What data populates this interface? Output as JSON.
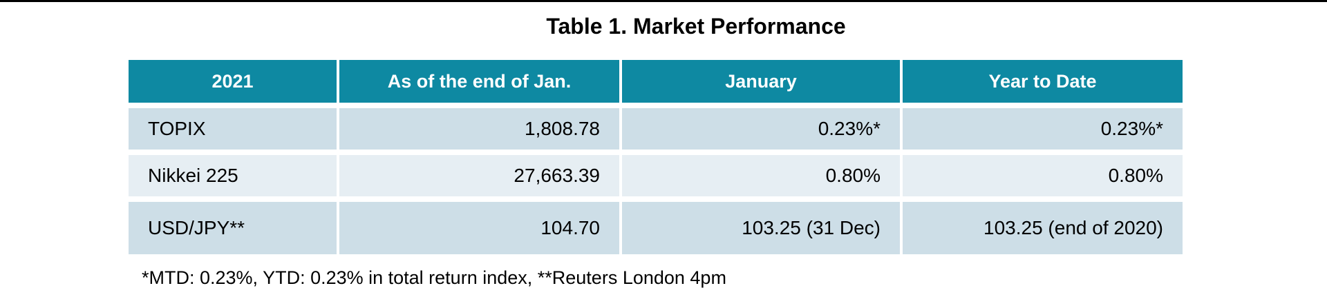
{
  "page": {
    "title": "Table 1. Market Performance",
    "footnote": "*MTD: 0.23%, YTD: 0.23% in total return index, **Reuters London 4pm"
  },
  "chart_data": {
    "type": "table",
    "title": "Table 1. Market Performance",
    "columns": [
      "2021",
      "As of the end of Jan.",
      "January",
      "Year to Date"
    ],
    "rows": [
      [
        "TOPIX",
        "1,808.78",
        "0.23%*",
        "0.23%*"
      ],
      [
        "Nikkei 225",
        "27,663.39",
        "0.80%",
        "0.80%"
      ],
      [
        "USD/JPY**",
        "104.70",
        "103.25 (31 Dec)",
        "103.25 (end of 2020)"
      ]
    ],
    "footnote": "*MTD: 0.23%, YTD: 0.23% in total return index, **Reuters London 4pm",
    "layout": {
      "header_bg": "#0E89A2",
      "header_text_color": "#FFFFFF",
      "row_color_odd": "#CDDEE7",
      "row_color_even": "#E6EEF3",
      "top_rule_color": "#000000",
      "first_column_align": "left",
      "value_columns_align": "right"
    }
  }
}
